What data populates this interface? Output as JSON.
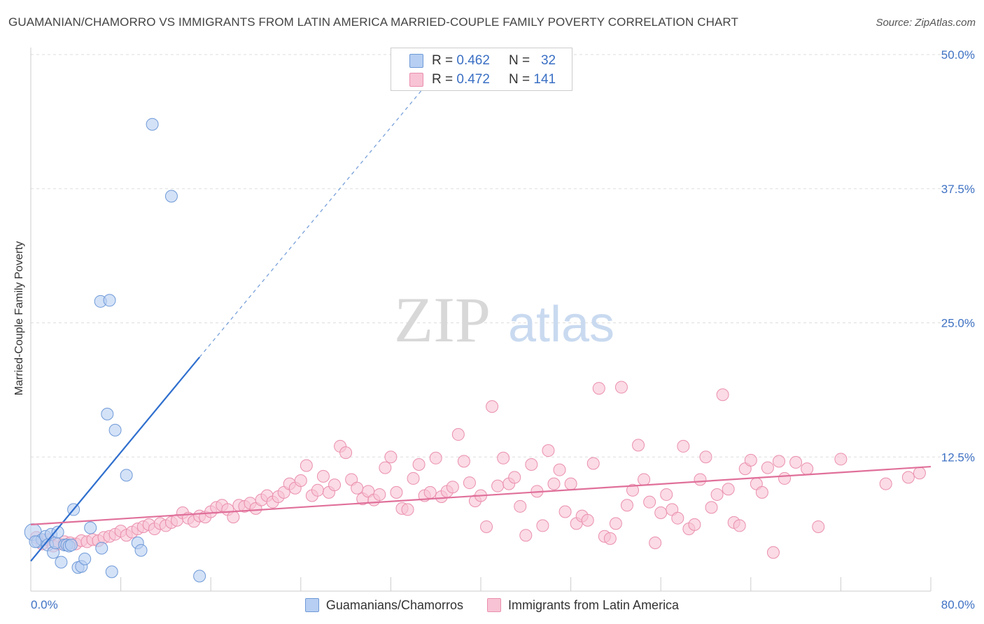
{
  "title": "GUAMANIAN/CHAMORRO VS IMMIGRANTS FROM LATIN AMERICA MARRIED-COUPLE FAMILY POVERTY CORRELATION CHART",
  "source": "Source: ZipAtlas.com",
  "watermark": {
    "zip": "ZIP",
    "atlas": "atlas"
  },
  "colors": {
    "blue_fill": "#b7cff2",
    "blue_stroke": "#6f9ad8",
    "blue_line": "#2f6fce",
    "pink_fill": "#f8c3d4",
    "pink_stroke": "#ea8fad",
    "pink_line": "#e0709a",
    "tick_label": "#3f72c4",
    "grid": "#dddddd"
  },
  "legend": {
    "r_label": "R =",
    "n_label": "N =",
    "entries": [
      {
        "r": "0.462",
        "n": "32"
      },
      {
        "r": "0.472",
        "n": "141"
      }
    ]
  },
  "chart_data": {
    "type": "scatter",
    "title": "GUAMANIAN/CHAMORRO VS IMMIGRANTS FROM LATIN AMERICA MARRIED-COUPLE FAMILY POVERTY CORRELATION CHART",
    "xlabel": "",
    "ylabel": "Married-Couple Family Poverty",
    "xlim": [
      0,
      80
    ],
    "ylim": [
      0,
      50
    ],
    "x_tick_labels": [
      "0.0%",
      "80.0%"
    ],
    "y_ticks": [
      12.5,
      25.0,
      37.5,
      50.0
    ],
    "y_tick_labels": [
      "12.5%",
      "25.0%",
      "37.5%",
      "50.0%"
    ],
    "grid": true,
    "legend_position": "top-center",
    "series": [
      {
        "name": "Guamanians/Chamorros",
        "points": [
          [
            0.2,
            5.5
          ],
          [
            0.6,
            4.6
          ],
          [
            1.0,
            4.8
          ],
          [
            1.3,
            5.1
          ],
          [
            1.5,
            4.3
          ],
          [
            1.8,
            5.3
          ],
          [
            2.0,
            3.6
          ],
          [
            2.2,
            4.5
          ],
          [
            2.4,
            5.5
          ],
          [
            2.7,
            2.7
          ],
          [
            3.0,
            4.3
          ],
          [
            3.2,
            4.3
          ],
          [
            3.4,
            4.2
          ],
          [
            3.6,
            4.3
          ],
          [
            3.8,
            7.6
          ],
          [
            4.2,
            2.2
          ],
          [
            4.5,
            2.3
          ],
          [
            4.8,
            3.0
          ],
          [
            5.3,
            5.9
          ],
          [
            6.2,
            27.0
          ],
          [
            6.3,
            4.0
          ],
          [
            6.8,
            16.5
          ],
          [
            7.0,
            27.1
          ],
          [
            7.2,
            1.8
          ],
          [
            7.5,
            15.0
          ],
          [
            8.5,
            10.8
          ],
          [
            9.5,
            4.5
          ],
          [
            9.8,
            3.8
          ],
          [
            10.8,
            43.5
          ],
          [
            12.5,
            36.8
          ],
          [
            15.0,
            1.4
          ],
          [
            0.4,
            4.6
          ]
        ],
        "trend": {
          "x": [
            0,
            15
          ],
          "y": [
            2.8,
            21.8
          ],
          "dashed_to": [
            35,
            47.0
          ]
        }
      },
      {
        "name": "Immigrants from Latin America",
        "points": [
          [
            0.5,
            5.0
          ],
          [
            1.0,
            4.4
          ],
          [
            1.5,
            4.8
          ],
          [
            2.0,
            4.2
          ],
          [
            2.5,
            4.4
          ],
          [
            3.0,
            4.6
          ],
          [
            3.5,
            4.5
          ],
          [
            4.0,
            4.4
          ],
          [
            4.5,
            4.7
          ],
          [
            5.0,
            4.6
          ],
          [
            5.5,
            4.8
          ],
          [
            6.0,
            4.7
          ],
          [
            6.5,
            5.0
          ],
          [
            7.0,
            5.1
          ],
          [
            7.5,
            5.3
          ],
          [
            8.0,
            5.6
          ],
          [
            8.5,
            5.2
          ],
          [
            9.0,
            5.5
          ],
          [
            9.5,
            5.8
          ],
          [
            10.0,
            6.0
          ],
          [
            10.5,
            6.2
          ],
          [
            11.0,
            5.8
          ],
          [
            11.5,
            6.3
          ],
          [
            12.0,
            6.1
          ],
          [
            12.5,
            6.4
          ],
          [
            13.0,
            6.6
          ],
          [
            13.5,
            7.3
          ],
          [
            14.0,
            6.8
          ],
          [
            14.5,
            6.5
          ],
          [
            15.0,
            7.0
          ],
          [
            15.5,
            6.9
          ],
          [
            16.0,
            7.4
          ],
          [
            16.5,
            7.8
          ],
          [
            17.0,
            8.0
          ],
          [
            17.5,
            7.6
          ],
          [
            18.0,
            6.9
          ],
          [
            18.5,
            8.0
          ],
          [
            19.0,
            7.9
          ],
          [
            19.5,
            8.2
          ],
          [
            20.0,
            7.7
          ],
          [
            20.5,
            8.5
          ],
          [
            21.0,
            8.9
          ],
          [
            21.5,
            8.3
          ],
          [
            22.0,
            8.8
          ],
          [
            22.5,
            9.2
          ],
          [
            23.0,
            10.0
          ],
          [
            23.5,
            9.6
          ],
          [
            24.0,
            10.3
          ],
          [
            24.5,
            11.7
          ],
          [
            25.0,
            8.9
          ],
          [
            25.5,
            9.4
          ],
          [
            26.0,
            10.7
          ],
          [
            26.5,
            9.2
          ],
          [
            27.0,
            9.9
          ],
          [
            27.5,
            13.5
          ],
          [
            28.0,
            12.9
          ],
          [
            28.5,
            10.4
          ],
          [
            29.0,
            9.6
          ],
          [
            29.5,
            8.6
          ],
          [
            30.0,
            9.3
          ],
          [
            30.5,
            8.5
          ],
          [
            31.0,
            9.0
          ],
          [
            31.5,
            11.5
          ],
          [
            32.0,
            12.5
          ],
          [
            32.5,
            9.2
          ],
          [
            33.0,
            7.7
          ],
          [
            33.5,
            7.6
          ],
          [
            34.0,
            10.5
          ],
          [
            34.5,
            11.8
          ],
          [
            35.0,
            8.9
          ],
          [
            35.5,
            9.2
          ],
          [
            36.0,
            12.4
          ],
          [
            36.5,
            8.8
          ],
          [
            37.0,
            9.3
          ],
          [
            37.5,
            9.7
          ],
          [
            38.0,
            14.6
          ],
          [
            38.5,
            12.1
          ],
          [
            39.0,
            10.1
          ],
          [
            39.5,
            8.4
          ],
          [
            40.0,
            8.9
          ],
          [
            40.5,
            6.0
          ],
          [
            41.0,
            17.2
          ],
          [
            41.5,
            9.8
          ],
          [
            42.0,
            12.4
          ],
          [
            42.5,
            10.0
          ],
          [
            43.0,
            10.6
          ],
          [
            43.5,
            7.9
          ],
          [
            44.0,
            5.2
          ],
          [
            44.5,
            11.8
          ],
          [
            45.0,
            9.3
          ],
          [
            45.5,
            6.1
          ],
          [
            46.0,
            13.1
          ],
          [
            46.5,
            10.0
          ],
          [
            47.0,
            11.3
          ],
          [
            47.5,
            7.4
          ],
          [
            48.0,
            10.0
          ],
          [
            48.5,
            6.3
          ],
          [
            49.0,
            7.0
          ],
          [
            49.5,
            6.6
          ],
          [
            50.0,
            11.9
          ],
          [
            50.5,
            18.9
          ],
          [
            51.0,
            5.1
          ],
          [
            51.5,
            4.9
          ],
          [
            52.0,
            6.3
          ],
          [
            52.5,
            19.0
          ],
          [
            53.0,
            8.0
          ],
          [
            53.5,
            9.4
          ],
          [
            54.0,
            13.6
          ],
          [
            54.5,
            10.4
          ],
          [
            55.0,
            8.3
          ],
          [
            55.5,
            4.5
          ],
          [
            56.0,
            7.3
          ],
          [
            56.5,
            9.0
          ],
          [
            57.0,
            7.6
          ],
          [
            57.5,
            6.8
          ],
          [
            58.0,
            13.5
          ],
          [
            58.5,
            5.8
          ],
          [
            59.0,
            6.2
          ],
          [
            59.5,
            10.4
          ],
          [
            60.0,
            12.5
          ],
          [
            60.5,
            7.8
          ],
          [
            61.0,
            9.0
          ],
          [
            61.5,
            18.3
          ],
          [
            62.0,
            9.5
          ],
          [
            62.5,
            6.4
          ],
          [
            63.0,
            6.1
          ],
          [
            63.5,
            11.4
          ],
          [
            64.0,
            12.2
          ],
          [
            64.5,
            10.0
          ],
          [
            65.0,
            9.2
          ],
          [
            65.5,
            11.5
          ],
          [
            66.0,
            3.6
          ],
          [
            66.5,
            12.1
          ],
          [
            67.0,
            10.5
          ],
          [
            68.0,
            12.0
          ],
          [
            69.0,
            11.4
          ],
          [
            72.0,
            12.3
          ],
          [
            76.0,
            10.0
          ],
          [
            78.0,
            10.6
          ],
          [
            79.0,
            11.0
          ],
          [
            70.0,
            6.0
          ]
        ],
        "trend": {
          "x": [
            0,
            80
          ],
          "y": [
            6.2,
            11.6
          ]
        }
      }
    ]
  }
}
